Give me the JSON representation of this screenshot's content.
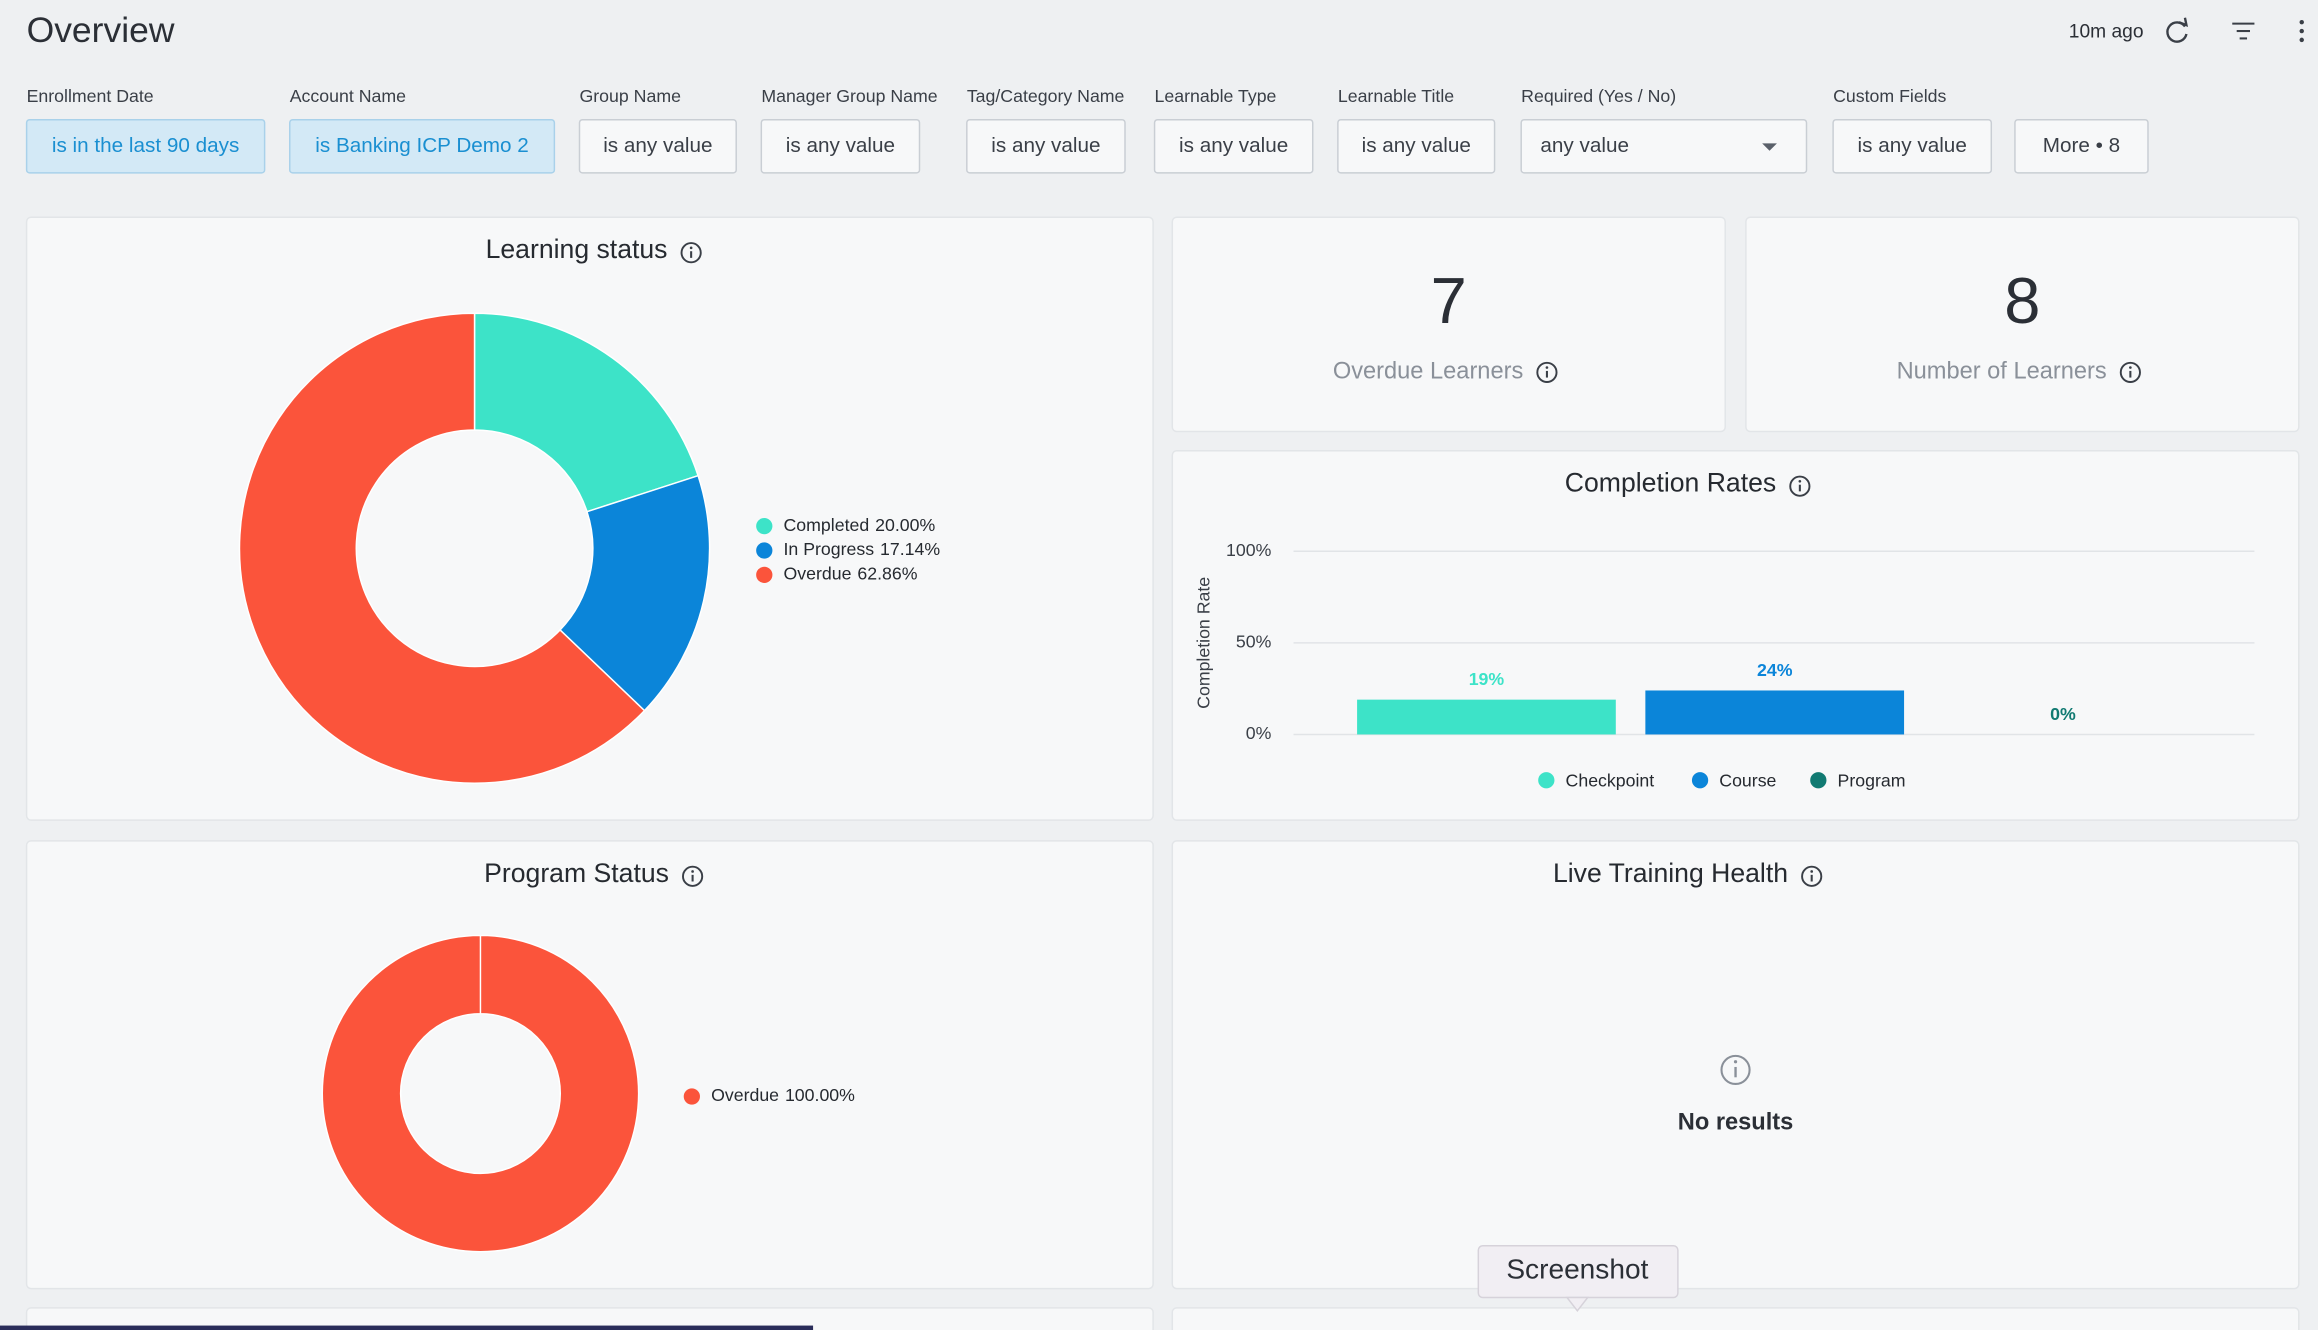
{
  "header": {
    "title": "Overview",
    "updated": "10m ago"
  },
  "filters": [
    {
      "label": "Enrollment Date",
      "value": "is in the last 90 days"
    },
    {
      "label": "Account Name",
      "value": "is Banking ICP Demo 2"
    },
    {
      "label": "Group Name",
      "value": "is any value"
    },
    {
      "label": "Manager Group Name",
      "value": "is any value"
    },
    {
      "label": "Tag/Category Name",
      "value": "is any value"
    },
    {
      "label": "Learnable Type",
      "value": "is any value"
    },
    {
      "label": "Learnable Title",
      "value": "is any value"
    },
    {
      "label": "Required (Yes / No)",
      "value": "any value"
    },
    {
      "label": "Custom Fields",
      "value": "is any value"
    }
  ],
  "more_filters": "More • 8",
  "tiles": [
    {
      "value": 7,
      "label": "Overdue Learners"
    },
    {
      "value": 8,
      "label": "Number of Learners"
    }
  ],
  "learning_status": {
    "type": "pie",
    "title": "Learning status",
    "categories": [
      "Completed",
      "In Progress",
      "Overdue"
    ],
    "values": [
      20.0,
      17.14,
      62.86
    ],
    "value_labels": [
      "20.00%",
      "17.14%",
      "62.86%"
    ],
    "colors": [
      "#3de3c8",
      "#0b85d9",
      "#fb543b"
    ]
  },
  "completion_rates": {
    "type": "bar",
    "title": "Completion Rates",
    "y_label": "Completion Rate",
    "series": [
      {
        "name": "Checkpoint",
        "color": "#3de3c8",
        "values": [
          19
        ],
        "value_labels": [
          "19%"
        ]
      },
      {
        "name": "Course",
        "color": "#0b85d9",
        "values": [
          24
        ],
        "value_labels": [
          "24%"
        ]
      },
      {
        "name": "Program",
        "color": "#117a72",
        "values": [
          0
        ],
        "value_labels": [
          "0%"
        ]
      }
    ],
    "ylim": [
      0,
      100
    ],
    "yticks": [
      {
        "value": 0,
        "label": "0%"
      },
      {
        "value": 50,
        "label": "50%"
      },
      {
        "value": 100,
        "label": "100%"
      }
    ],
    "grid": true
  },
  "program_status": {
    "type": "pie",
    "title": "Program Status",
    "categories": [
      "Overdue"
    ],
    "values": [
      100.0
    ],
    "value_labels": [
      "100.00%"
    ],
    "colors": [
      "#fb543b"
    ]
  },
  "live_training": {
    "title": "Live Training Health",
    "message": "No results"
  },
  "tooltip": "Screenshot"
}
